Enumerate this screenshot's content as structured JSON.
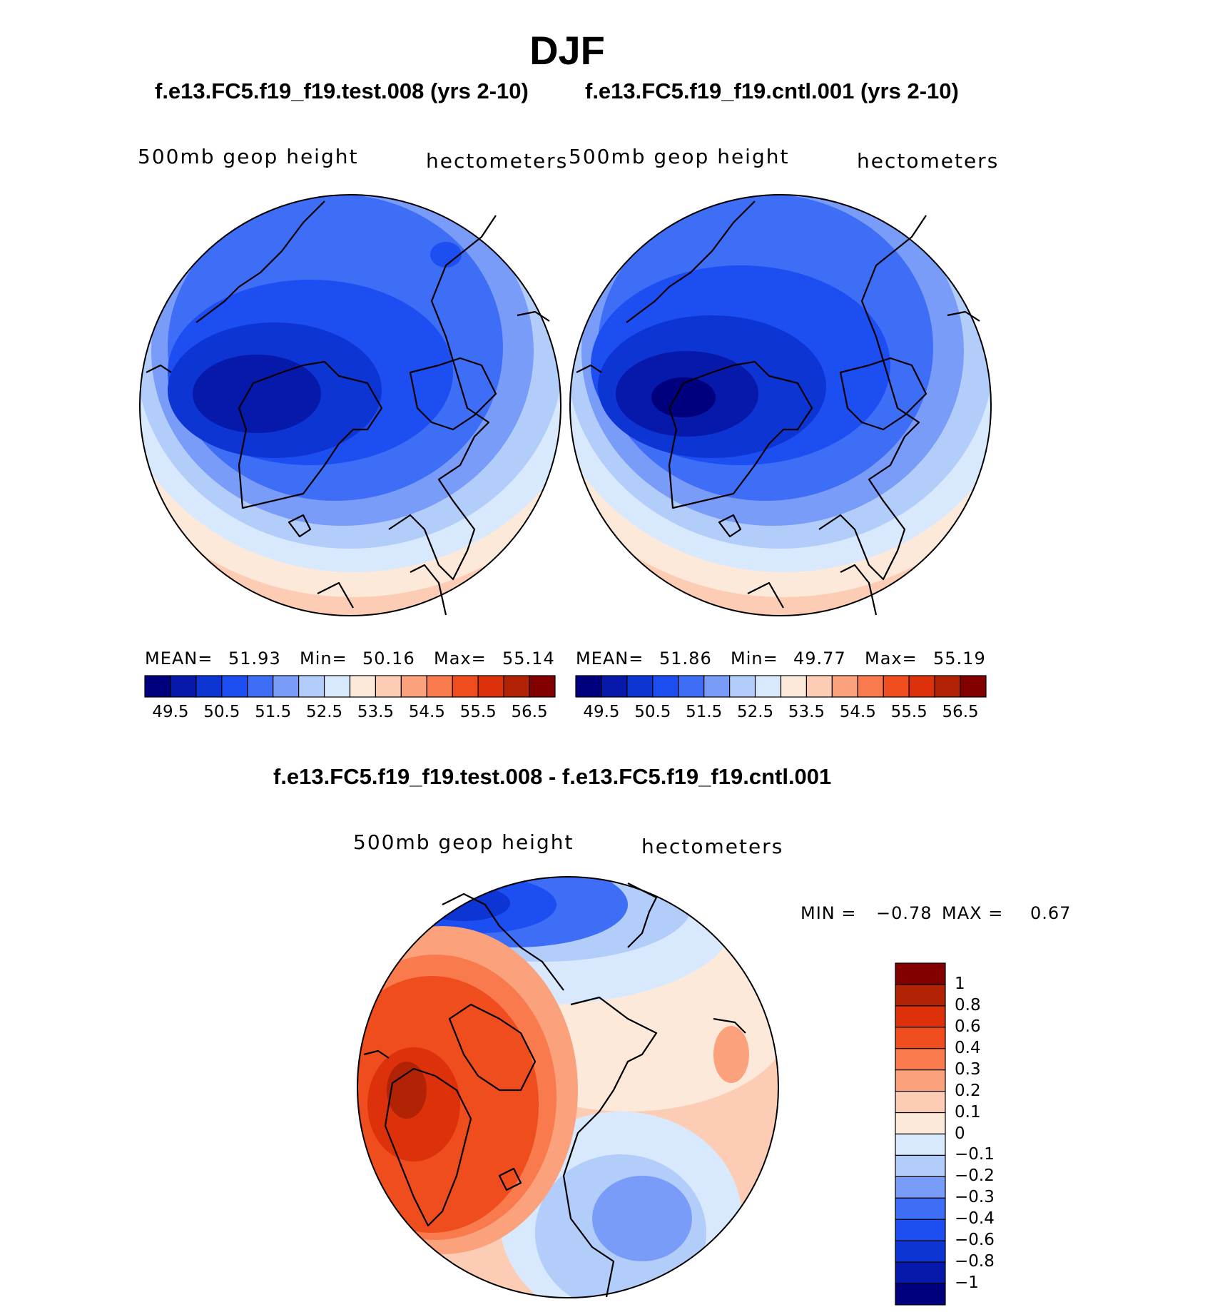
{
  "figure": {
    "title": "DJF",
    "colors": {
      "coast": "#000000",
      "background": "#ffffff"
    }
  },
  "panels": [
    {
      "case_title": "f.e13.FC5.f19_f19.test.008 (yrs 2-10)",
      "variable": "500mb geop height",
      "units": "hectometers",
      "stats": {
        "mean_label": "MEAN=",
        "mean": "51.93",
        "min_label": "Min=",
        "min": "50.16",
        "max_label": "Max=",
        "max": "55.14"
      }
    },
    {
      "case_title": "f.e13.FC5.f19_f19.cntl.001 (yrs 2-10)",
      "variable": "500mb geop height",
      "units": "hectometers",
      "stats": {
        "mean_label": "MEAN=",
        "mean": "51.86",
        "min_label": "Min=",
        "min": "49.77",
        "max_label": "Max=",
        "max": "55.19"
      }
    }
  ],
  "diff_panel": {
    "case_title": "f.e13.FC5.f19_f19.test.008 - f.e13.FC5.f19_f19.cntl.001",
    "variable": "500mb geop height",
    "units": "hectometers",
    "stats": {
      "min_label": "MIN =",
      "min": "−0.78",
      "max_label": "MAX =",
      "max": "0.67"
    }
  },
  "colorbar_abs": {
    "colors": [
      "#00007f",
      "#0619aa",
      "#0d35d4",
      "#1c4ef2",
      "#3e6ef6",
      "#7a9cf9",
      "#b3cdfb",
      "#d8e9fd",
      "#fde9da",
      "#fccdb4",
      "#fba27c",
      "#f97a4c",
      "#f04d1e",
      "#dc310a",
      "#b22204",
      "#830000"
    ],
    "tick_labels": [
      "49.5",
      "50.5",
      "51.5",
      "52.5",
      "53.5",
      "54.5",
      "55.5",
      "56.5"
    ]
  },
  "colorbar_diff": {
    "colors": [
      "#00007f",
      "#0619aa",
      "#0d35d4",
      "#1c4ef2",
      "#3e6ef6",
      "#7a9cf9",
      "#b3cdfb",
      "#d8e9fd",
      "#fde9da",
      "#fccdb4",
      "#fba27c",
      "#f97a4c",
      "#f04d1e",
      "#dc310a",
      "#b22204",
      "#830000"
    ],
    "tick_labels": [
      "1",
      "0.8",
      "0.6",
      "0.4",
      "0.3",
      "0.2",
      "0.1",
      "0",
      "−0.1",
      "−0.2",
      "−0.3",
      "−0.4",
      "−0.6",
      "−0.8",
      "−1"
    ]
  }
}
